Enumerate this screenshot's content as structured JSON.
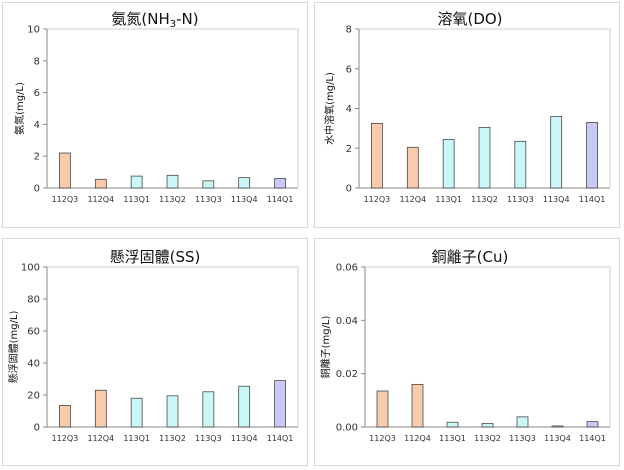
{
  "colors": {
    "peach": "#f8cbad",
    "cyan": "#c9f7f7",
    "lavender": "#c9c9f7",
    "bar_border": "#333333",
    "axis": "#888888"
  },
  "chart_data": [
    {
      "type": "bar",
      "title_main": "氨氮(NH",
      "title_sub": "3",
      "title_tail": "-N)",
      "ylabel": "氨氮(mg/L)",
      "categories": [
        "112Q3",
        "112Q4",
        "113Q1",
        "113Q2",
        "113Q3",
        "113Q4",
        "114Q1"
      ],
      "values": [
        2.2,
        0.55,
        0.75,
        0.8,
        0.45,
        0.65,
        0.6
      ],
      "bar_colors": [
        "peach",
        "peach",
        "cyan",
        "cyan",
        "cyan",
        "cyan",
        "lavender"
      ],
      "ylim": [
        0,
        10
      ],
      "yticks": [
        "0",
        "2",
        "4",
        "6",
        "8",
        "10"
      ],
      "grid": false
    },
    {
      "type": "bar",
      "title_main": "溶氧(DO)",
      "title_sub": "",
      "title_tail": "",
      "ylabel": "水中溶氧(mg/L)",
      "categories": [
        "112Q3",
        "112Q4",
        "113Q1",
        "113Q2",
        "113Q3",
        "113Q4",
        "114Q1"
      ],
      "values": [
        3.25,
        2.05,
        2.45,
        3.05,
        2.35,
        3.6,
        3.3
      ],
      "bar_colors": [
        "peach",
        "peach",
        "cyan",
        "cyan",
        "cyan",
        "cyan",
        "lavender"
      ],
      "ylim": [
        0,
        8
      ],
      "yticks": [
        "0",
        "2",
        "4",
        "6",
        "8"
      ],
      "grid": false
    },
    {
      "type": "bar",
      "title_main": "懸浮固體(SS)",
      "title_sub": "",
      "title_tail": "",
      "ylabel": "懸浮固體(mg/L)",
      "categories": [
        "112Q3",
        "112Q4",
        "113Q1",
        "113Q2",
        "113Q3",
        "113Q4",
        "114Q1"
      ],
      "values": [
        13.5,
        23,
        18,
        19.5,
        22,
        25.5,
        29
      ],
      "bar_colors": [
        "peach",
        "peach",
        "cyan",
        "cyan",
        "cyan",
        "cyan",
        "lavender"
      ],
      "ylim": [
        0,
        100
      ],
      "yticks": [
        "0",
        "20",
        "40",
        "60",
        "80",
        "100"
      ],
      "grid": false
    },
    {
      "type": "bar",
      "title_main": "銅離子(Cu)",
      "title_sub": "",
      "title_tail": "",
      "ylabel": "銅離子(mg/L)",
      "categories": [
        "112Q3",
        "112Q4",
        "113Q1",
        "113Q2",
        "113Q3",
        "113Q4",
        "114Q1"
      ],
      "values": [
        0.0135,
        0.016,
        0.0018,
        0.0013,
        0.0038,
        0.0004,
        0.002
      ],
      "bar_colors": [
        "peach",
        "peach",
        "cyan",
        "cyan",
        "cyan",
        "cyan",
        "lavender"
      ],
      "ylim": [
        0,
        0.06
      ],
      "yticks": [
        "0.00",
        "0.02",
        "0.04",
        "0.06"
      ],
      "grid": false
    }
  ]
}
